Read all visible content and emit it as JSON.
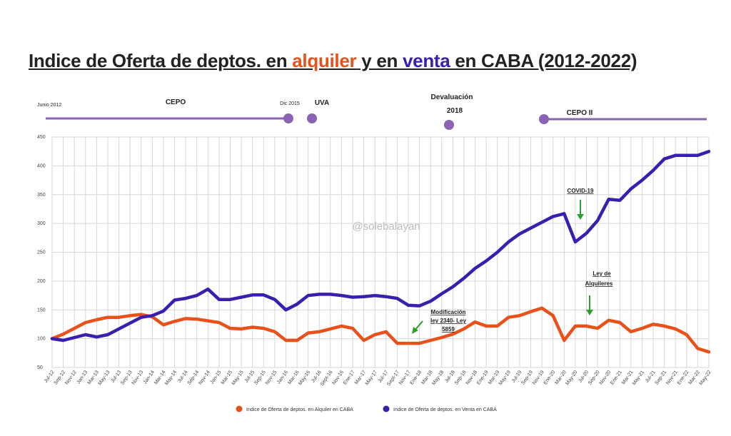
{
  "title": {
    "prefix": "Indice de Oferta de deptos. en ",
    "rent_word": "alquiler",
    "middle": " y en ",
    "sale_word": "venta",
    "suffix": " en CABA  (2012-2022)"
  },
  "watermark": "@solebalayan",
  "colors": {
    "rent": "#e8521a",
    "sale": "#3a1fae",
    "timeline": "#8a63b3"
  },
  "timeline": {
    "start_label": "Junio 2012",
    "cepo_label": "CEPO",
    "dic_label": "Dic 2015",
    "uva_label": "UVA",
    "deval_label_1": "Devaluación",
    "deval_label_2": "2018",
    "cepo2_label": "CEPO II"
  },
  "annotations": {
    "mod_1": "Modificación",
    "mod_2": "ley 2340- Ley",
    "mod_3": "5859",
    "covid": "COVID-19",
    "ley_1": "Ley de",
    "ley_2": "Alquileres"
  },
  "chart_data": {
    "type": "line",
    "title": "Indice de Oferta de deptos. en alquiler y en venta en CABA  (2012-2022)",
    "ylim": [
      50,
      450
    ],
    "yticks": [
      50,
      100,
      150,
      200,
      250,
      300,
      350,
      400,
      450
    ],
    "grid": true,
    "legend_position": "bottom",
    "x_labels": [
      "Jul-12",
      "Sep-12",
      "Nov-12",
      "Jan-13",
      "Mar-13",
      "May-13",
      "Jul-13",
      "Sep-13",
      "Nov-13",
      "Jan-14",
      "Mar-14",
      "May-14",
      "Jul-14",
      "Sep-14",
      "Nov-14",
      "Jan-15",
      "Mar-15",
      "May-15",
      "Jul-15",
      "Sep-15",
      "Nov-15",
      "Jan-16",
      "Mar-16",
      "May-16",
      "Jul-16",
      "Sept-16",
      "Nov-16",
      "Ene-17",
      "Mar-17",
      "May-17",
      "Jul-17",
      "Sept-17",
      "Nov-17",
      "Ene-18",
      "Mar-18",
      "May-18",
      "Jul-18",
      "Sep-18",
      "Nov-18",
      "Ene-19",
      "Mar-19",
      "May-19",
      "Jul-19",
      "Sep-19",
      "Nov-19",
      "Ene-20",
      "Mar-20",
      "May-20",
      "Jul-20",
      "Sep-20",
      "Nov-20",
      "Ene-21",
      "Mar-21",
      "May-21",
      "Jul-21",
      "Sep-21",
      "Nov-21",
      "Ene-22",
      "Mar-22",
      "May-22"
    ],
    "series": [
      {
        "name": "Indice de Oferta de deptos. en Alquiler en CABA",
        "color": "#e8521a",
        "values": [
          100,
          108,
          118,
          128,
          133,
          137,
          137,
          140,
          142,
          138,
          124,
          130,
          135,
          134,
          131,
          128,
          118,
          117,
          120,
          118,
          112,
          97,
          97,
          110,
          112,
          117,
          122,
          118,
          97,
          107,
          112,
          92,
          92,
          92,
          97,
          102,
          108,
          117,
          129,
          122,
          122,
          137,
          140,
          147,
          153,
          140,
          97,
          122,
          122,
          118,
          132,
          128,
          112,
          118,
          125,
          122,
          117,
          107,
          83,
          77
        ]
      },
      {
        "name": "Indice de Oferta de deptos. en Venta en CABA",
        "color": "#3a1fae",
        "values": [
          100,
          97,
          102,
          107,
          103,
          107,
          117,
          127,
          137,
          140,
          148,
          167,
          170,
          175,
          186,
          168,
          168,
          172,
          176,
          176,
          168,
          150,
          160,
          175,
          177,
          177,
          175,
          172,
          173,
          175,
          173,
          170,
          158,
          157,
          165,
          178,
          190,
          205,
          222,
          235,
          250,
          268,
          282,
          292,
          302,
          312,
          317,
          268,
          283,
          305,
          342,
          340,
          360,
          375,
          392,
          412,
          418,
          418,
          418,
          425
        ]
      }
    ]
  }
}
